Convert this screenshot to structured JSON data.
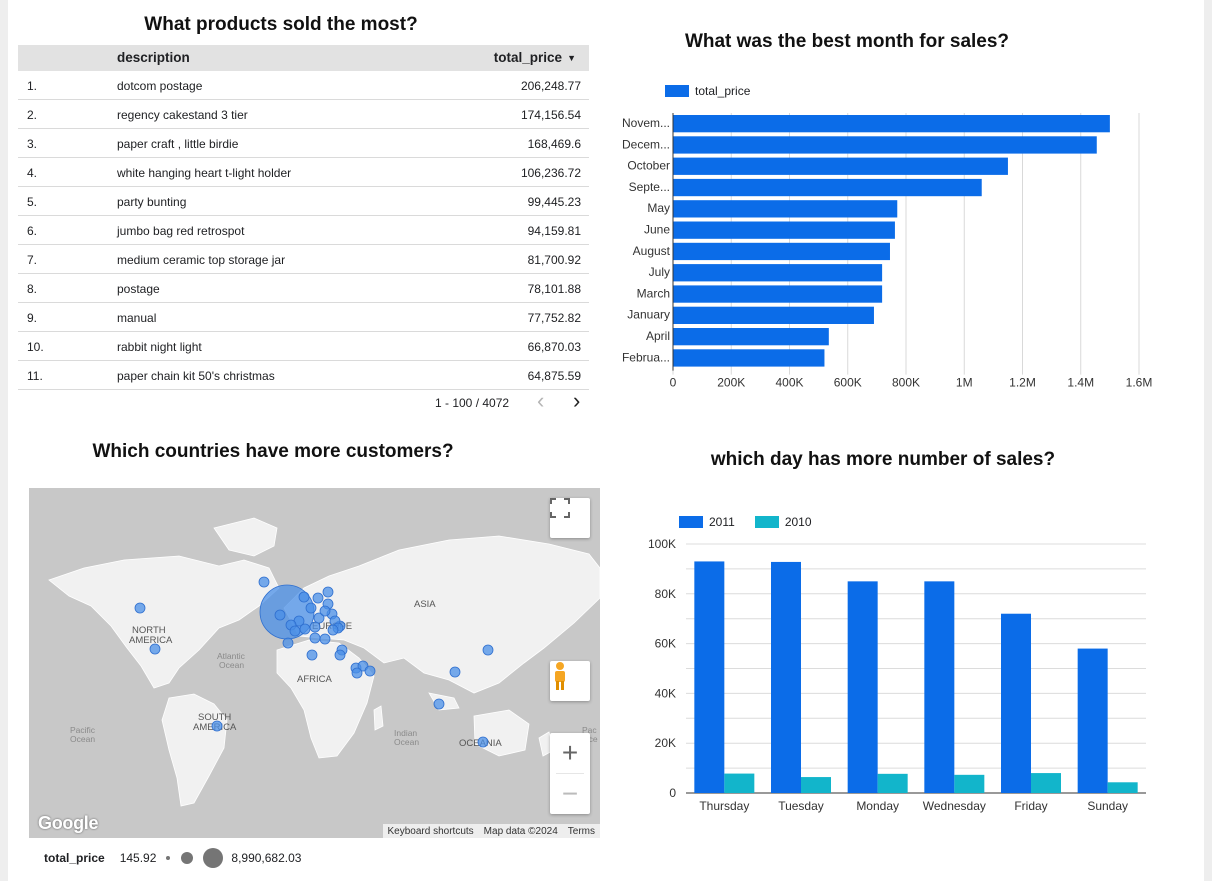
{
  "products": {
    "title": "What products sold the most?",
    "columns": {
      "description": "description",
      "total_price": "total_price"
    },
    "rows": [
      {
        "n": "1.",
        "desc": "dotcom postage",
        "price": "206,248.77"
      },
      {
        "n": "2.",
        "desc": "regency cakestand 3 tier",
        "price": "174,156.54"
      },
      {
        "n": "3.",
        "desc": "paper craft , little birdie",
        "price": "168,469.6"
      },
      {
        "n": "4.",
        "desc": "white hanging heart t-light holder",
        "price": "106,236.72"
      },
      {
        "n": "5.",
        "desc": "party bunting",
        "price": "99,445.23"
      },
      {
        "n": "6.",
        "desc": "jumbo bag red retrospot",
        "price": "94,159.81"
      },
      {
        "n": "7.",
        "desc": "medium ceramic top storage jar",
        "price": "81,700.92"
      },
      {
        "n": "8.",
        "desc": "postage",
        "price": "78,101.88"
      },
      {
        "n": "9.",
        "desc": "manual",
        "price": "77,752.82"
      },
      {
        "n": "10.",
        "desc": "rabbit night light",
        "price": "66,870.03"
      },
      {
        "n": "11.",
        "desc": "paper chain kit 50's christmas",
        "price": "64,875.59"
      }
    ],
    "pagination": "1 - 100 / 4072",
    "prev_icon": "chevron-left-icon",
    "next_icon": "chevron-right-icon"
  },
  "countries": {
    "title": "Which countries have more customers?",
    "labels": {
      "north_america": "NORTH AMERICA",
      "south_america": "SOUTH AMERICA",
      "europe": "EUROPE",
      "asia": "ASIA",
      "africa": "AFRICA",
      "oceania": "OCEANIA",
      "atlantic": "Atlantic Ocean",
      "pacific": "Pacific Ocean",
      "indian": "Indian Ocean"
    },
    "google": "Google",
    "attribution": [
      "Keyboard shortcuts",
      "Map data ©2024",
      "Terms"
    ],
    "legend": {
      "field": "total_price",
      "min": "145.92",
      "max": "8,990,682.03"
    },
    "bubble_color": "#4a8fe7"
  },
  "chart_data": [
    {
      "type": "bar",
      "orientation": "horizontal",
      "title": "What was the best month for sales?",
      "categories": [
        "Novem...",
        "Decem...",
        "October",
        "Septe...",
        "May",
        "June",
        "August",
        "July",
        "March",
        "January",
        "April",
        "Februa..."
      ],
      "series": [
        {
          "name": "total_price",
          "values": [
            1500000,
            1455000,
            1150000,
            1060000,
            770000,
            762000,
            745000,
            718000,
            718000,
            690000,
            535000,
            520000
          ],
          "color": "#0b6ce8"
        }
      ],
      "xlim": [
        0,
        1600000
      ],
      "xticks": [
        "0",
        "200K",
        "400K",
        "600K",
        "800K",
        "1M",
        "1.2M",
        "1.4M",
        "1.6M"
      ],
      "grid": true,
      "legend": "top-left"
    },
    {
      "type": "bar",
      "title": "which day has more number of sales?",
      "categories": [
        "Thursday",
        "Tuesday",
        "Monday",
        "Wednesday",
        "Friday",
        "Sunday"
      ],
      "series": [
        {
          "name": "2011",
          "values": [
            93000,
            92800,
            85000,
            85000,
            72000,
            58000
          ],
          "color": "#0b6ce8"
        },
        {
          "name": "2010",
          "values": [
            7800,
            6400,
            7700,
            7300,
            8000,
            4300
          ],
          "color": "#12b5cb"
        }
      ],
      "ylim": [
        0,
        100000
      ],
      "yticks": [
        "0",
        "20K",
        "40K",
        "60K",
        "80K",
        "100K"
      ],
      "grid": true,
      "legend": "top-left"
    }
  ]
}
